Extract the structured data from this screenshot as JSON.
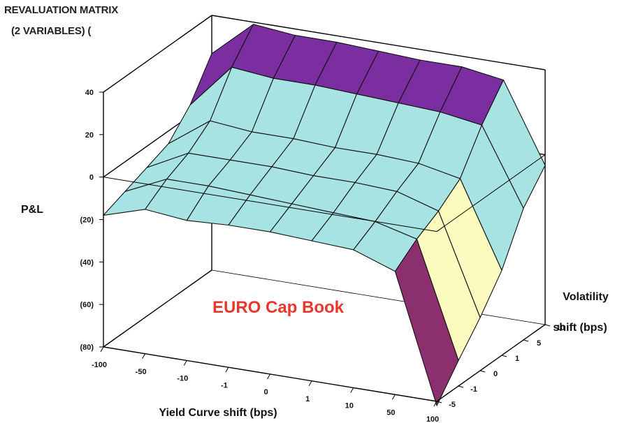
{
  "chart_data": {
    "type": "surface",
    "title_lines": [
      "REVALUATION MATRIX",
      "(2 VARIABLES) ("
    ],
    "xlabel": "Yield Curve shift (bps)",
    "ylabel_lines": [
      "Volatility",
      "shift (bps)"
    ],
    "zlabel": "P&L",
    "x": [
      "-100",
      "-50",
      "-10",
      "-1",
      "0",
      "1",
      "10",
      "50",
      "100"
    ],
    "y": [
      "-5",
      "-1",
      "0",
      "1",
      "5",
      "10"
    ],
    "z_ticks": [
      "(80)",
      "(60)",
      "(40)",
      "(20)",
      "0",
      "20",
      "40"
    ],
    "zlim": [
      -80,
      40
    ],
    "values": [
      [
        -18,
        -12,
        -14,
        -13,
        -13,
        -14,
        -15,
        -22,
        -82
      ],
      [
        -14,
        -5,
        -5,
        -6,
        -7,
        -8,
        -9,
        -14,
        -68
      ],
      [
        -10,
        0,
        0,
        0,
        -1,
        -1,
        -2,
        -8,
        -55
      ],
      [
        -6,
        8,
        6,
        6,
        5,
        5,
        4,
        0,
        -40
      ],
      [
        5,
        26,
        24,
        24,
        23,
        22,
        21,
        18,
        -18
      ],
      [
        22,
        39,
        37,
        37,
        36,
        35,
        35,
        32,
        -5
      ]
    ],
    "annotation": "EURO Cap Book",
    "annotation_color": "#e8382c",
    "band_colors": {
      "below_-60": "#9393f7",
      "-60_to_-40": "#8b2f6e",
      "-40_to_-20": "#fbfbbf",
      "-20_to_0": "#a8e3e3",
      "0_to_20": "#a8e3e3",
      "20_to_40": "#7a2ea0",
      "above_40": "#f4908c"
    }
  }
}
